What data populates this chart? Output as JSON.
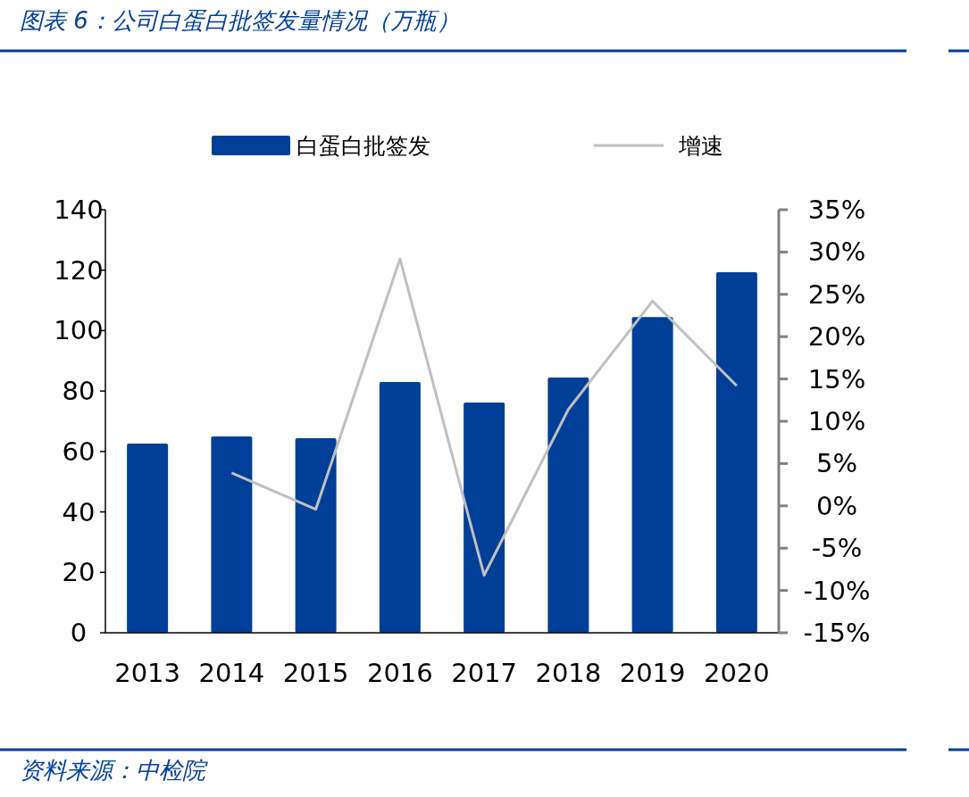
{
  "chart_data": {
    "type": "bar",
    "title": "图表 6：公司白蛋白批签发量情况（万瓶）",
    "annotations": [
      "资料来源：中检院"
    ],
    "categories": [
      "2013",
      "2014",
      "2015",
      "2016",
      "2017",
      "2018",
      "2019",
      "2020"
    ],
    "series": [
      {
        "name": "白蛋白批签发",
        "color": "#003f98",
        "values": [
          62.6,
          65.0,
          64.4,
          83.0,
          76.2,
          84.5,
          104.5,
          119.3
        ]
      },
      {
        "name": "增速",
        "type": "line",
        "axis": "y2",
        "color": "#c0c0c0",
        "values": [
          null,
          3.9,
          -0.4,
          29.2,
          -8.2,
          11.4,
          24.2,
          14.2
        ]
      }
    ],
    "ylim": [
      0,
      140
    ],
    "yticks": [
      0,
      20,
      40,
      60,
      80,
      100,
      120,
      140
    ],
    "y2lim": [
      -15,
      35
    ],
    "y2ticks": [
      {
        "value": -15,
        "label": "-15%"
      },
      {
        "value": -10,
        "label": "-10%"
      },
      {
        "value": -5,
        "label": "-5%"
      },
      {
        "value": 0,
        "label": "0%"
      },
      {
        "value": 5,
        "label": "5%"
      },
      {
        "value": 10,
        "label": "10%"
      },
      {
        "value": 15,
        "label": "15%"
      },
      {
        "value": 20,
        "label": "20%"
      },
      {
        "value": 25,
        "label": "25%"
      },
      {
        "value": 30,
        "label": "30%"
      },
      {
        "value": 35,
        "label": "35%"
      }
    ],
    "legend": "top"
  }
}
